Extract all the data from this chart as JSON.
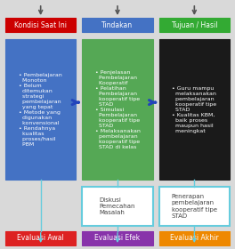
{
  "fig_w": 2.64,
  "fig_h": 2.8,
  "dpi": 100,
  "bg_color": "#d9d9d9",
  "title_boxes": [
    {
      "label": "Kondisi Saat Ini",
      "col": 0,
      "bg": "#cc0000",
      "fg": "white"
    },
    {
      "label": "Tindakan",
      "col": 1,
      "bg": "#4472c4",
      "fg": "white"
    },
    {
      "label": "Tujuan / Hasil",
      "col": 2,
      "bg": "#33aa33",
      "fg": "white"
    }
  ],
  "main_texts": [
    "• Pembelajaran\n  Monoton\n• Belum\n  ditemukan\n  strategi\n  pembelajaran\n  yang tepat\n• Metode yang\n  digunakan\n  konvensional\n• Rendahnya\n  kualitas\n  proses/hasil\n  PBM",
    "• Penjelasan\n  Pembelajaran\n  Kooperatif\n• Pelatihan\n  Pembelajaran\n  kooperatif tipe\n  STAD\n• Simulasi\n  Pembelajaran\n  kooperatif tipe\n  STAD\n• Melaksanakan\n  pembelajaran\n  kooperatif tipe\n  STAD di kelas",
    "• Guru mampu\n  melaksanakan\n  pembelajaran\n  kooperatif tipe\n  STAD\n• Kualitas KBM,\n  baik proses\n  maupun hasil\n  meningkat"
  ],
  "main_bg": [
    "#4472c4",
    "#55a855",
    "#1a1a1a"
  ],
  "main_fg": [
    "white",
    "white",
    "white"
  ],
  "mid_texts": [
    "Diskusi\nPemecahan\nMasalah",
    "Penerapan\npembelajaran\nkooperatif tipe\nSTAD"
  ],
  "mid_cols": [
    1,
    2
  ],
  "bottom_boxes": [
    {
      "label": "Evaluasi Awal",
      "col": 0,
      "bg": "#dd2222",
      "fg": "white"
    },
    {
      "label": "Evaluasi Efek",
      "col": 1,
      "bg": "#8833aa",
      "fg": "white"
    },
    {
      "label": "Evaluasi Akhir",
      "col": 2,
      "bg": "#ee8800",
      "fg": "white"
    }
  ],
  "arrow_color": "#555555",
  "hline_color": "#66ccdd",
  "horiz_arrow_color": "#2244bb"
}
